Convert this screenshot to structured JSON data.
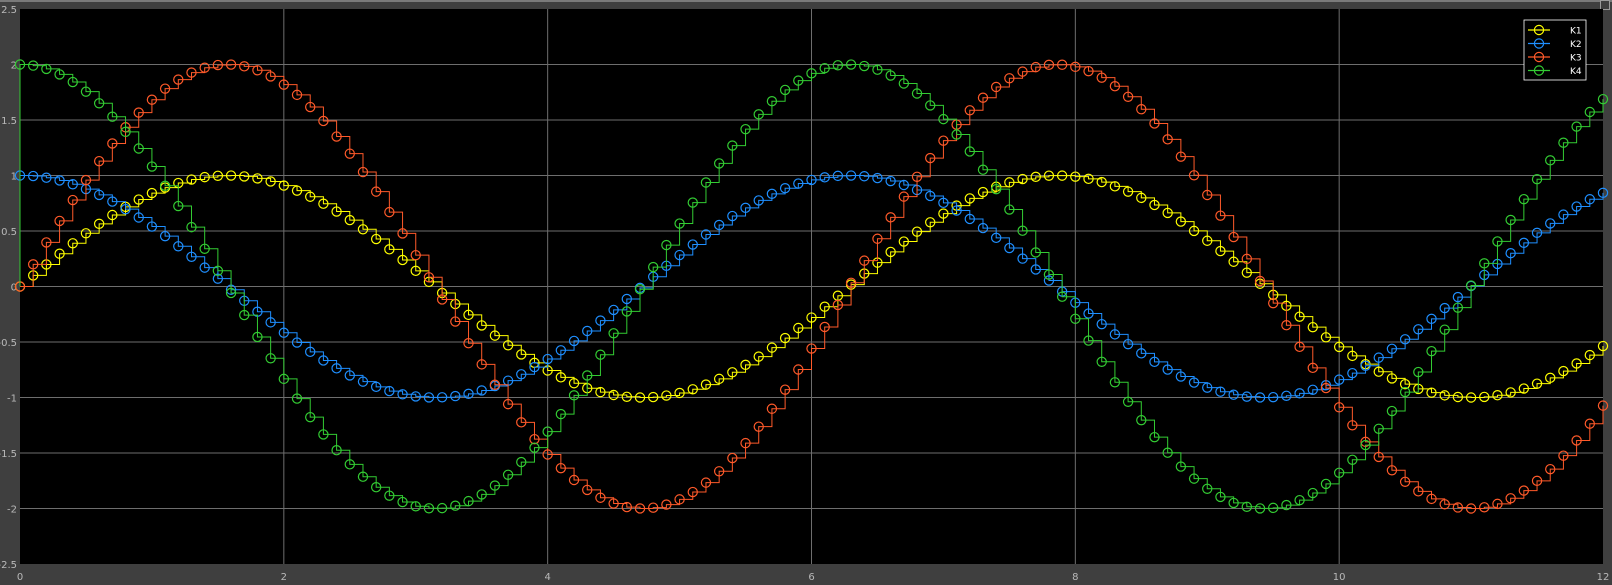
{
  "colors": {
    "background": "#000000",
    "frame": "#3f3f3f",
    "grid": "#6e6e6e",
    "tick_text": "#b9b9b9",
    "legend_border": "#ffffff"
  },
  "chart_data": {
    "type": "line",
    "title": "",
    "xlabel": "",
    "ylabel": "",
    "xlim": [
      0,
      12
    ],
    "ylim": [
      -2.5,
      2.5
    ],
    "x_ticks": [
      0,
      2,
      4,
      6,
      8,
      10,
      12
    ],
    "x_tick_labels": [
      "0",
      "2",
      "4",
      "6",
      "8",
      "10",
      "12"
    ],
    "y_ticks": [
      2.5,
      2,
      1.5,
      1,
      0.5,
      0,
      -0.5,
      -1,
      -1.5,
      -2,
      -2.5
    ],
    "y_tick_labels": [
      "2.5",
      "2",
      "1.5",
      "1",
      "0.5",
      "0",
      "-0.5",
      "-1",
      "-1.5",
      "-2",
      "-2.5"
    ],
    "grid": true,
    "legend_position": "top-right",
    "sample_time": 0.1,
    "step_style": "zero-order-hold with circle markers",
    "series": [
      {
        "name": "K1",
        "color": "#ffff00",
        "function": "sin(t)",
        "amplitude": 1,
        "frequency": 1,
        "phase": 0,
        "offset": 0
      },
      {
        "name": "K2",
        "color": "#1f8fff",
        "function": "cos(t)",
        "amplitude": 1,
        "frequency": 1,
        "phase": 1.5708,
        "offset": 0
      },
      {
        "name": "K3",
        "color": "#ff5a2a",
        "function": "2*sin(t)",
        "amplitude": 2,
        "frequency": 1,
        "phase": 0,
        "offset": 0
      },
      {
        "name": "K4",
        "color": "#33cc33",
        "function": "2*cos(t)",
        "amplitude": 2,
        "frequency": 1,
        "phase": 1.5708,
        "offset": 0
      }
    ]
  }
}
